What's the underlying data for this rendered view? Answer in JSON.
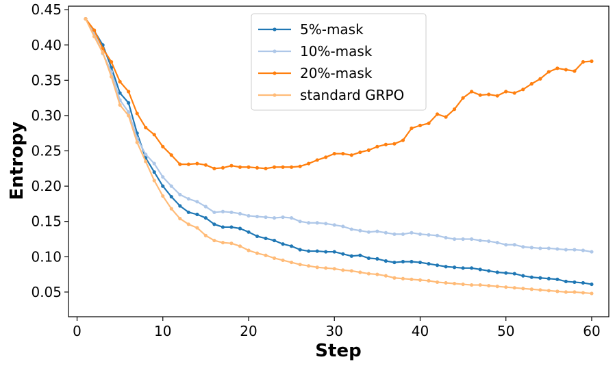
{
  "chart_data": {
    "type": "line",
    "title": "",
    "xlabel": "Step",
    "ylabel": "Entropy",
    "xlim": [
      -1,
      62
    ],
    "ylim": [
      0.015,
      0.455
    ],
    "xticks": [
      0,
      10,
      20,
      30,
      40,
      50,
      60
    ],
    "yticks": [
      0.05,
      0.1,
      0.15,
      0.2,
      0.25,
      0.3,
      0.35,
      0.4,
      0.45
    ],
    "ytick_labels": [
      "0.05",
      "0.10",
      "0.15",
      "0.20",
      "0.25",
      "0.30",
      "0.35",
      "0.40",
      "0.45"
    ],
    "grid": false,
    "legend_position": "top-center",
    "x": [
      1,
      2,
      3,
      4,
      5,
      6,
      7,
      8,
      9,
      10,
      11,
      12,
      13,
      14,
      15,
      16,
      17,
      18,
      19,
      20,
      21,
      22,
      23,
      24,
      25,
      26,
      27,
      28,
      29,
      30,
      31,
      32,
      33,
      34,
      35,
      36,
      37,
      38,
      39,
      40,
      41,
      42,
      43,
      44,
      45,
      46,
      47,
      48,
      49,
      50,
      51,
      52,
      53,
      54,
      55,
      56,
      57,
      58,
      59,
      60
    ],
    "series": [
      {
        "name": "5%-mask",
        "color": "#1f77b4",
        "values": [
          0.437,
          0.42,
          0.4,
          0.368,
          0.332,
          0.318,
          0.275,
          0.24,
          0.22,
          0.2,
          0.185,
          0.172,
          0.163,
          0.16,
          0.155,
          0.146,
          0.142,
          0.142,
          0.14,
          0.135,
          0.129,
          0.126,
          0.123,
          0.118,
          0.115,
          0.11,
          0.108,
          0.108,
          0.107,
          0.107,
          0.104,
          0.101,
          0.102,
          0.098,
          0.097,
          0.094,
          0.092,
          0.093,
          0.093,
          0.092,
          0.09,
          0.088,
          0.086,
          0.085,
          0.084,
          0.084,
          0.082,
          0.08,
          0.078,
          0.077,
          0.076,
          0.073,
          0.071,
          0.07,
          0.069,
          0.068,
          0.065,
          0.064,
          0.063,
          0.061
        ]
      },
      {
        "name": "10%-mask",
        "color": "#aec7e8",
        "values": [
          0.437,
          0.416,
          0.388,
          0.362,
          0.322,
          0.305,
          0.268,
          0.245,
          0.232,
          0.213,
          0.2,
          0.188,
          0.182,
          0.178,
          0.171,
          0.163,
          0.164,
          0.163,
          0.161,
          0.158,
          0.157,
          0.156,
          0.155,
          0.156,
          0.155,
          0.15,
          0.148,
          0.148,
          0.147,
          0.145,
          0.143,
          0.139,
          0.137,
          0.135,
          0.136,
          0.134,
          0.132,
          0.132,
          0.134,
          0.132,
          0.131,
          0.13,
          0.127,
          0.125,
          0.125,
          0.125,
          0.123,
          0.122,
          0.12,
          0.117,
          0.117,
          0.114,
          0.113,
          0.112,
          0.112,
          0.111,
          0.11,
          0.11,
          0.109,
          0.107
        ]
      },
      {
        "name": "20%-mask",
        "color": "#ff7f0e",
        "values": [
          0.437,
          0.421,
          0.395,
          0.376,
          0.348,
          0.334,
          0.303,
          0.283,
          0.273,
          0.256,
          0.244,
          0.231,
          0.231,
          0.232,
          0.23,
          0.225,
          0.226,
          0.229,
          0.227,
          0.227,
          0.226,
          0.225,
          0.227,
          0.227,
          0.227,
          0.228,
          0.232,
          0.237,
          0.241,
          0.246,
          0.246,
          0.244,
          0.248,
          0.251,
          0.256,
          0.259,
          0.26,
          0.265,
          0.282,
          0.286,
          0.289,
          0.302,
          0.298,
          0.309,
          0.325,
          0.334,
          0.329,
          0.33,
          0.328,
          0.334,
          0.332,
          0.337,
          0.345,
          0.352,
          0.362,
          0.367,
          0.365,
          0.363,
          0.376,
          0.377
        ]
      },
      {
        "name": "standard GRPO",
        "color": "#ffbb78",
        "values": [
          0.437,
          0.412,
          0.389,
          0.355,
          0.315,
          0.3,
          0.262,
          0.235,
          0.208,
          0.186,
          0.168,
          0.154,
          0.146,
          0.141,
          0.13,
          0.123,
          0.12,
          0.119,
          0.115,
          0.109,
          0.105,
          0.102,
          0.098,
          0.095,
          0.092,
          0.089,
          0.087,
          0.085,
          0.084,
          0.083,
          0.081,
          0.08,
          0.078,
          0.076,
          0.075,
          0.073,
          0.07,
          0.069,
          0.068,
          0.067,
          0.066,
          0.064,
          0.063,
          0.062,
          0.061,
          0.06,
          0.06,
          0.059,
          0.058,
          0.057,
          0.056,
          0.055,
          0.054,
          0.053,
          0.052,
          0.051,
          0.05,
          0.05,
          0.049,
          0.048
        ]
      }
    ]
  }
}
